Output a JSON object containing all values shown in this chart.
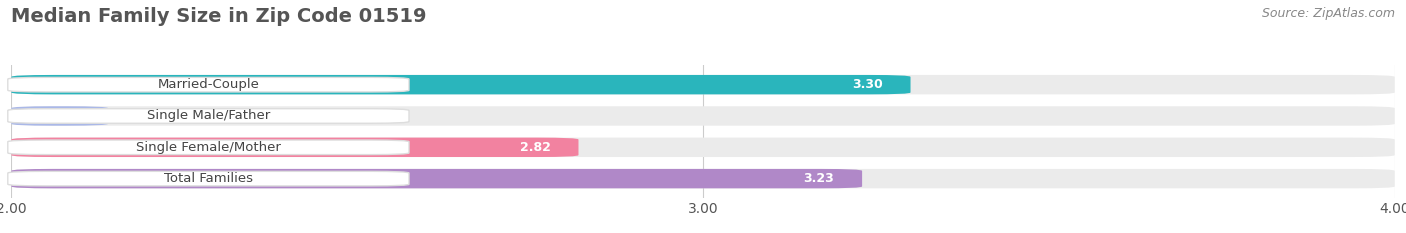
{
  "title": "Median Family Size in Zip Code 01519",
  "source": "Source: ZipAtlas.com",
  "categories": [
    "Married-Couple",
    "Single Male/Father",
    "Single Female/Mother",
    "Total Families"
  ],
  "values": [
    3.3,
    2.14,
    2.82,
    3.23
  ],
  "bar_colors": [
    "#2ab5bc",
    "#aab8e8",
    "#f282a0",
    "#b088c8"
  ],
  "xmin": 2.0,
  "xmax": 4.0,
  "xticks": [
    2.0,
    3.0,
    4.0
  ],
  "bar_height": 0.62,
  "background_color": "#ffffff",
  "bar_bg_color": "#ebebeb",
  "title_fontsize": 14,
  "source_fontsize": 9,
  "tick_fontsize": 10,
  "value_fontsize": 9,
  "label_fontsize": 9.5
}
